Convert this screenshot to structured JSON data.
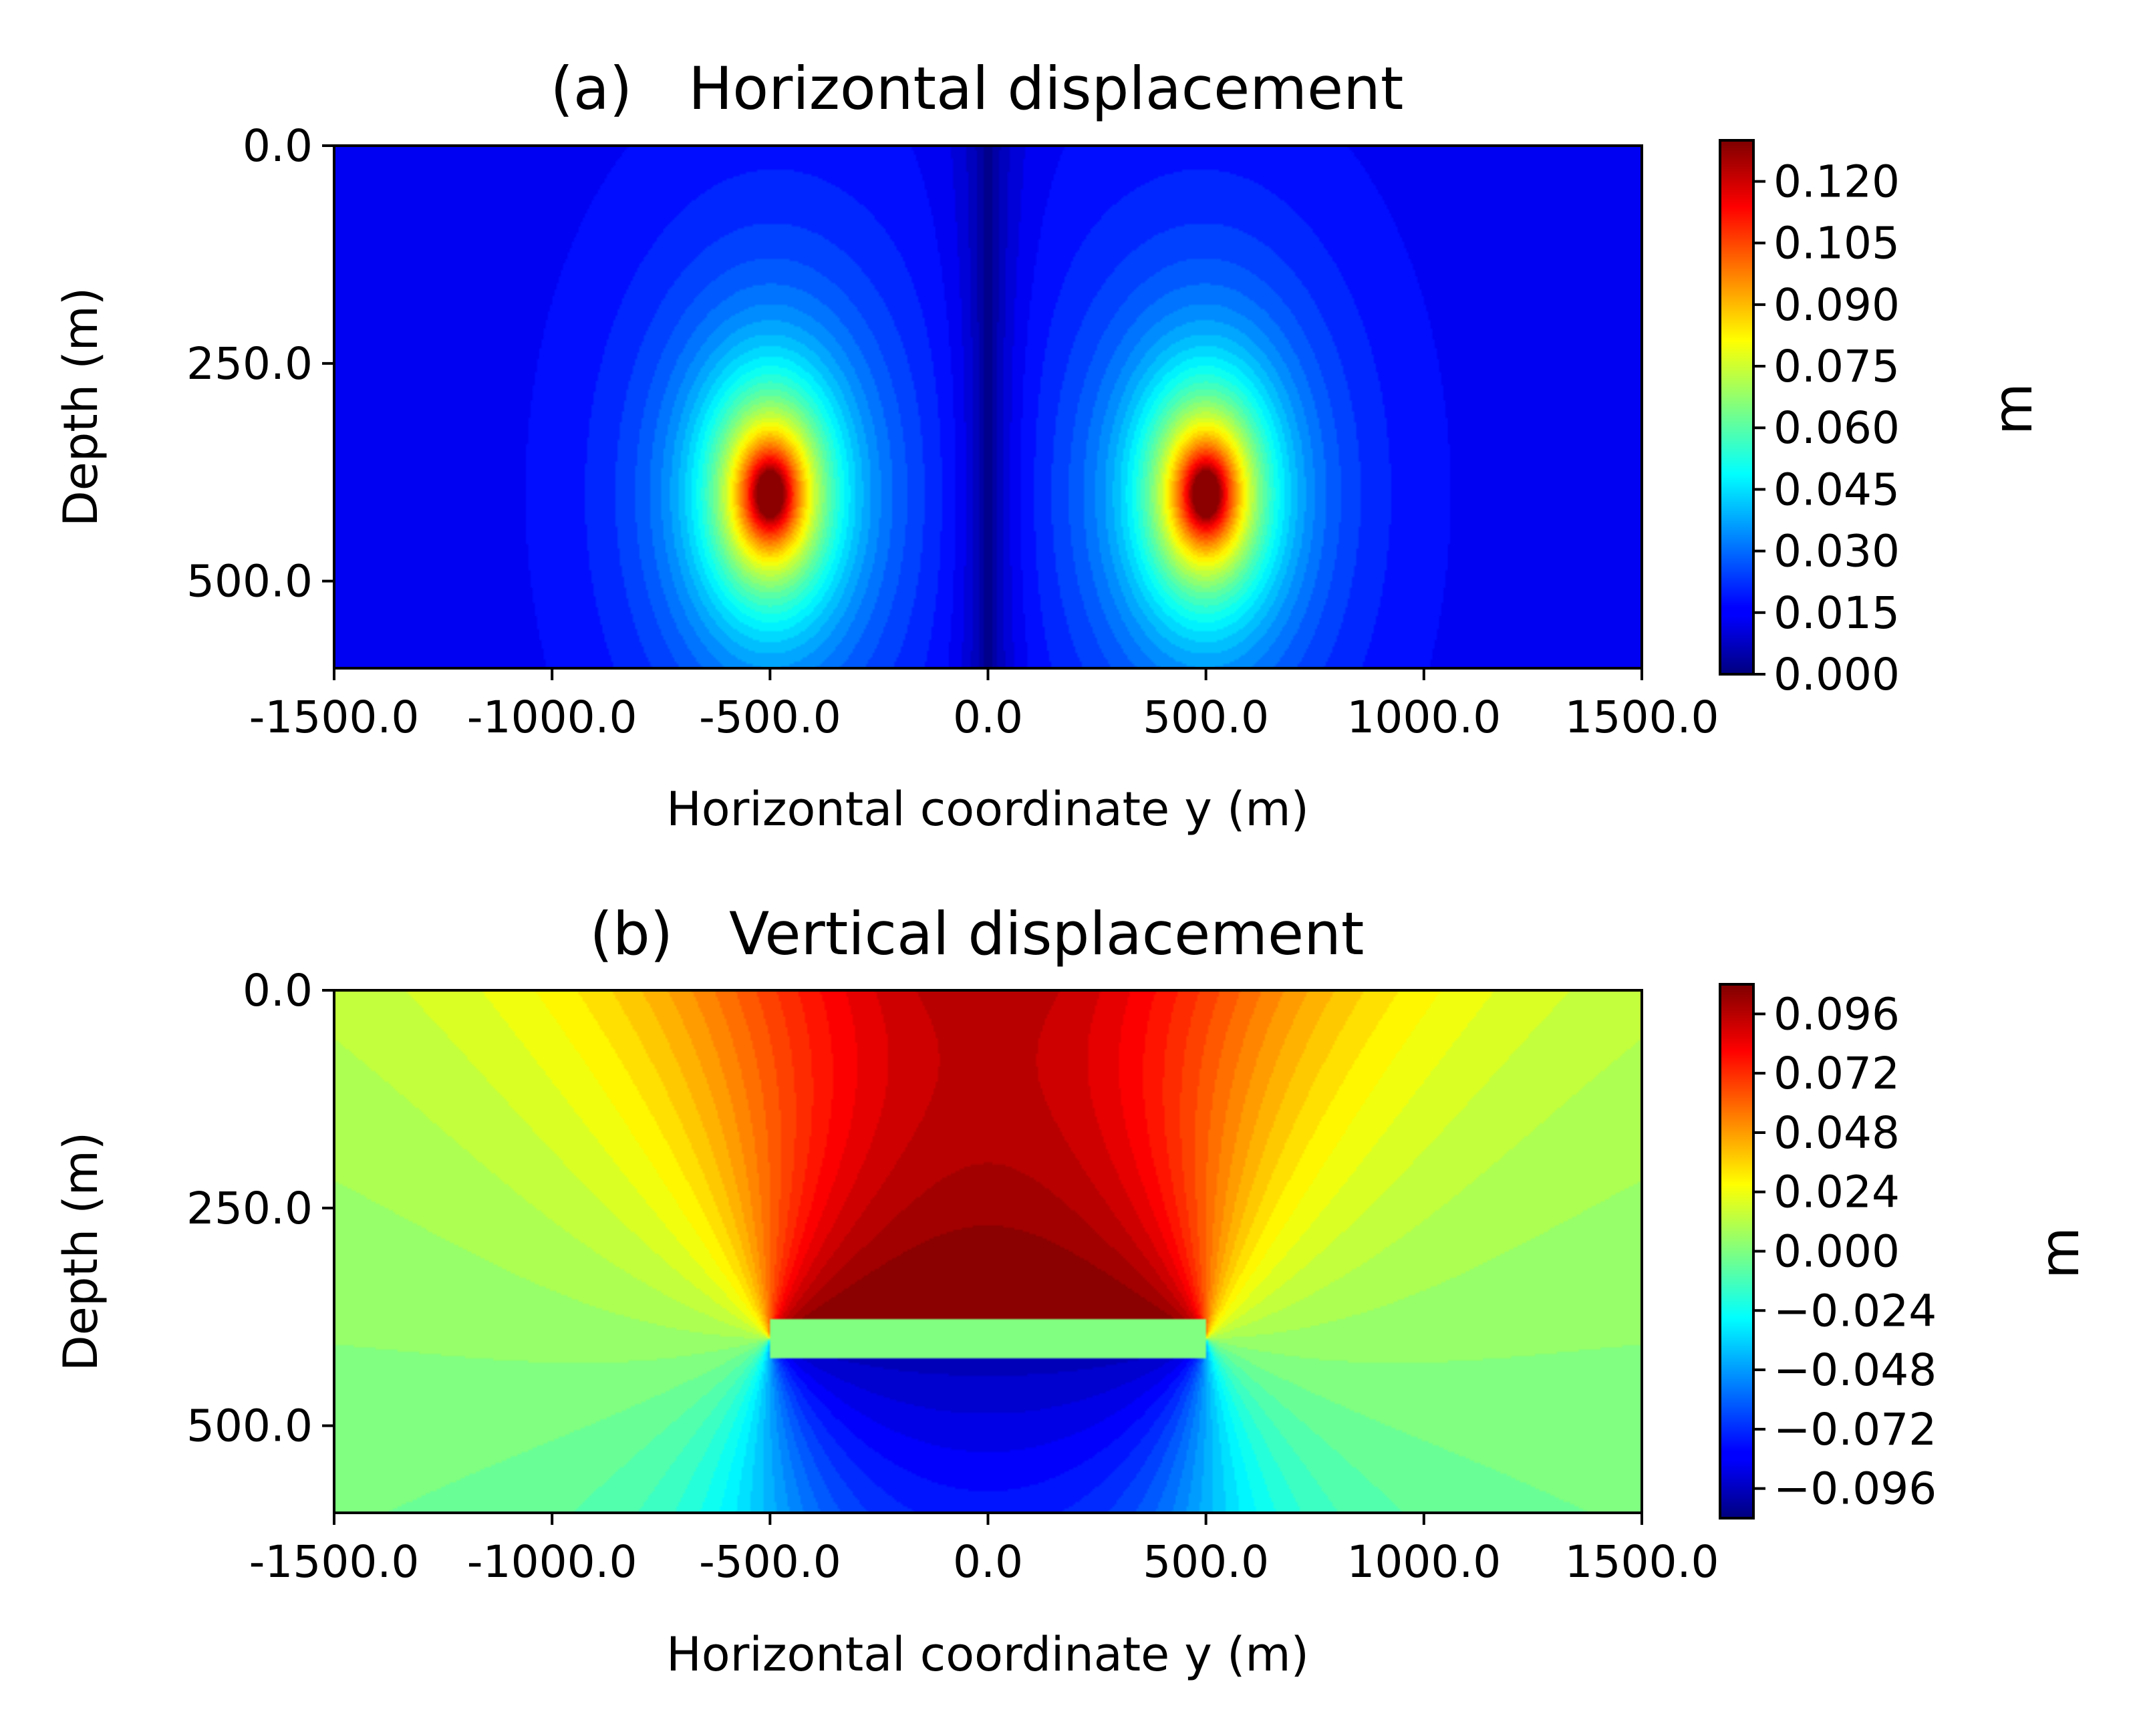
{
  "chart_data": [
    {
      "type": "heatmap",
      "panel": "(a)",
      "title": "Horizontal displacement",
      "xlabel": "Horizontal coordinate y (m)",
      "ylabel": "Depth (m)",
      "xlim": [
        -1500,
        1500
      ],
      "ylim": [
        600,
        0
      ],
      "xticks": [
        -1500,
        -1000,
        -500,
        0,
        500,
        1000,
        1500
      ],
      "xtick_labels": [
        "-1500.0",
        "-1000.0",
        "-500.0",
        "0.0",
        "500.0",
        "1000.0",
        "1500.0"
      ],
      "yticks": [
        0,
        250,
        500
      ],
      "ytick_labels": [
        "0.0",
        "250.0",
        "500.0"
      ],
      "colormap": "jet",
      "colorbar": {
        "label": "m",
        "range": [
          0,
          0.13
        ],
        "ticks": [
          0,
          0.015,
          0.03,
          0.045,
          0.06,
          0.075,
          0.09,
          0.105,
          0.12
        ],
        "tick_labels": [
          "0.000",
          "0.015",
          "0.030",
          "0.045",
          "0.060",
          "0.075",
          "0.090",
          "0.105",
          "0.120"
        ]
      },
      "features": {
        "peaks_y": [
          -500,
          500
        ],
        "peak_depth": 400,
        "peak_value": 0.13,
        "background_value": 0.015,
        "minimum_line_y": 0,
        "minimum_value": 0.0
      }
    },
    {
      "type": "heatmap",
      "panel": "(b)",
      "title": "Vertical displacement",
      "xlabel": "Horizontal coordinate y (m)",
      "ylabel": "Depth (m)",
      "xlim": [
        -1500,
        1500
      ],
      "ylim": [
        600,
        0
      ],
      "xticks": [
        -1500,
        -1000,
        -500,
        0,
        500,
        1000,
        1500
      ],
      "xtick_labels": [
        "-1500.0",
        "-1000.0",
        "-500.0",
        "0.0",
        "500.0",
        "1000.0",
        "1500.0"
      ],
      "yticks": [
        0,
        250,
        500
      ],
      "ytick_labels": [
        "0.0",
        "250.0",
        "500.0"
      ],
      "colormap": "jet",
      "colorbar": {
        "label": "m",
        "range": [
          -0.108,
          0.108
        ],
        "ticks": [
          -0.096,
          -0.072,
          -0.048,
          -0.024,
          0,
          0.024,
          0.048,
          0.072,
          0.096
        ],
        "tick_labels": [
          "−0.096",
          "−0.072",
          "−0.048",
          "−0.024",
          "0.000",
          "0.024",
          "0.048",
          "0.072",
          "0.096"
        ]
      },
      "features": {
        "segment_y": [
          -500,
          500
        ],
        "segment_depth": 400,
        "max_value": 0.105,
        "min_value": -0.105,
        "surface_uplift_value": 0.05
      }
    }
  ]
}
